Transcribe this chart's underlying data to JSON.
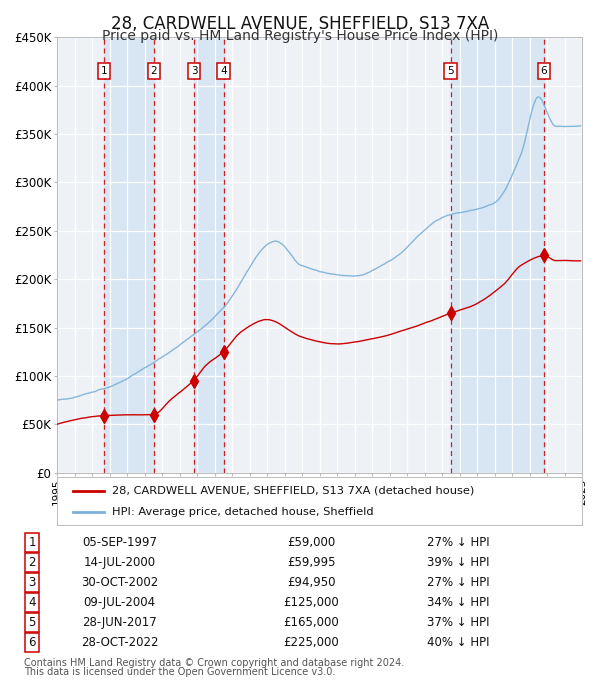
{
  "title": "28, CARDWELL AVENUE, SHEFFIELD, S13 7XA",
  "subtitle": "Price paid vs. HM Land Registry's House Price Index (HPI)",
  "title_fontsize": 12,
  "subtitle_fontsize": 10,
  "ylim": [
    0,
    450000
  ],
  "yticks": [
    0,
    50000,
    100000,
    150000,
    200000,
    250000,
    300000,
    350000,
    400000,
    450000
  ],
  "ytick_labels": [
    "£0",
    "£50K",
    "£100K",
    "£150K",
    "£200K",
    "£250K",
    "£300K",
    "£350K",
    "£400K",
    "£450K"
  ],
  "hpi_color": "#7ab0d8",
  "price_color": "#cc0000",
  "marker_color": "#cc0000",
  "sale_times": [
    1997.674,
    2000.537,
    2002.829,
    2004.521,
    2017.493,
    2022.829
  ],
  "sale_prices": [
    59000,
    59995,
    94950,
    125000,
    165000,
    225000
  ],
  "sale_labels": [
    "1",
    "2",
    "3",
    "4",
    "5",
    "6"
  ],
  "sale_info": [
    [
      "05-SEP-1997",
      "£59,000",
      "27% ↓ HPI"
    ],
    [
      "14-JUL-2000",
      "£59,995",
      "39% ↓ HPI"
    ],
    [
      "30-OCT-2002",
      "£94,950",
      "27% ↓ HPI"
    ],
    [
      "09-JUL-2004",
      "£125,000",
      "34% ↓ HPI"
    ],
    [
      "28-JUN-2017",
      "£165,000",
      "37% ↓ HPI"
    ],
    [
      "28-OCT-2022",
      "£225,000",
      "40% ↓ HPI"
    ]
  ],
  "legend_line1": "28, CARDWELL AVENUE, SHEFFIELD, S13 7XA (detached house)",
  "legend_line2": "HPI: Average price, detached house, Sheffield",
  "footer1": "Contains HM Land Registry data © Crown copyright and database right 2024.",
  "footer2": "This data is licensed under the Open Government Licence v3.0.",
  "background_color": "#ffffff",
  "plot_bg_color": "#eef2f7",
  "grid_color": "#ffffff",
  "shade_color": "#d8e6f3",
  "start_year": 1995,
  "end_year": 2025
}
